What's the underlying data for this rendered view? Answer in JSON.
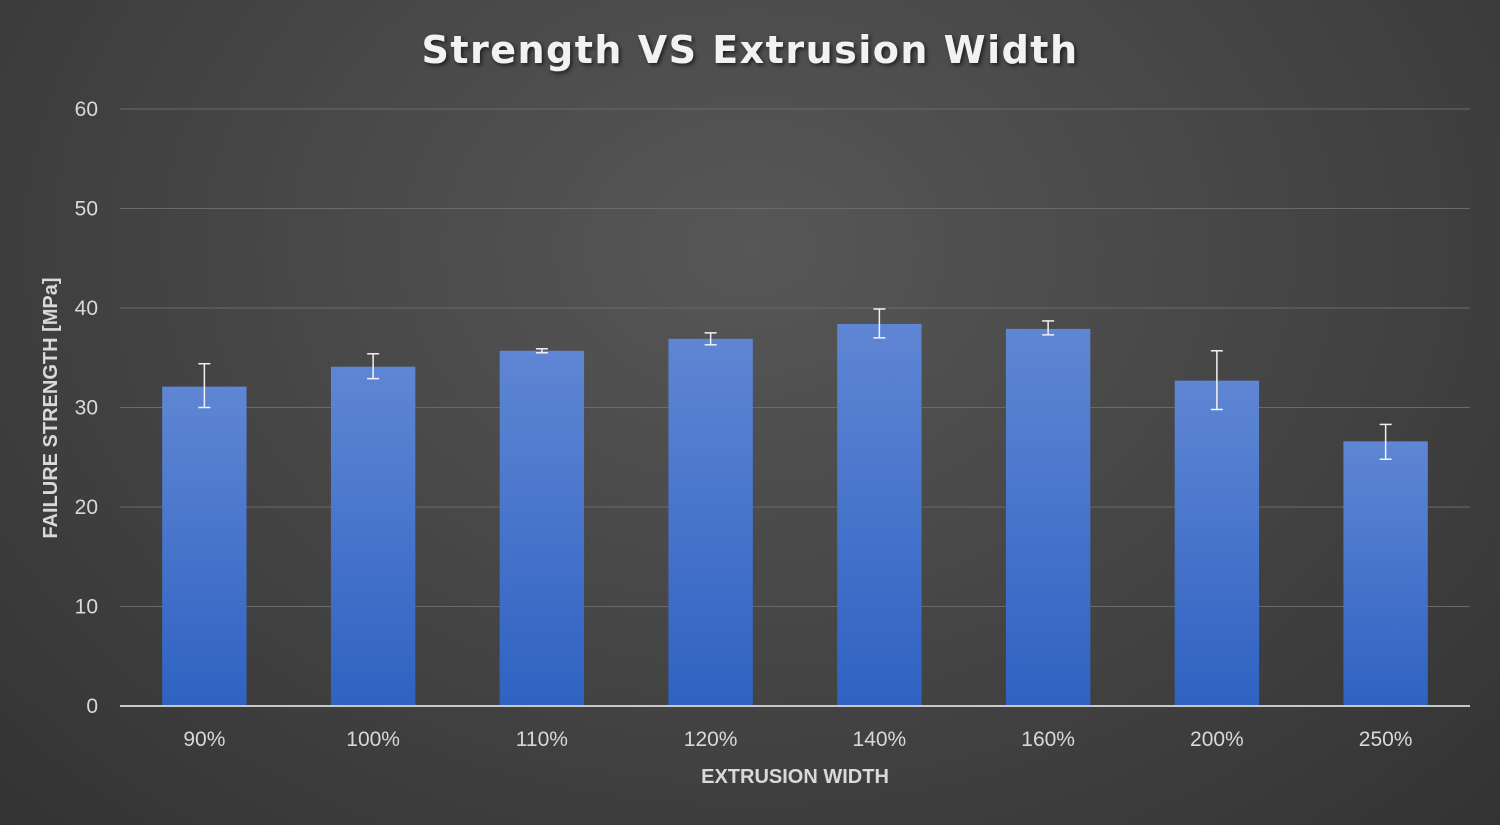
{
  "chart_data": {
    "type": "bar",
    "title": "Strength VS Extrusion Width",
    "xlabel": "EXTRUSION WIDTH",
    "ylabel": "FAILURE STRENGTH [MPa]",
    "ylim": [
      0,
      60
    ],
    "yticks": [
      0,
      10,
      20,
      30,
      40,
      50,
      60
    ],
    "grid": true,
    "categories": [
      "90%",
      "100%",
      "110%",
      "120%",
      "140%",
      "160%",
      "200%",
      "250%"
    ],
    "values": [
      32.1,
      34.1,
      35.7,
      36.9,
      38.4,
      37.9,
      32.7,
      26.6
    ],
    "error_low": [
      30.0,
      32.9,
      35.5,
      36.3,
      37.0,
      37.3,
      29.8,
      24.8
    ],
    "error_high": [
      34.4,
      35.4,
      35.9,
      37.5,
      39.9,
      38.7,
      35.7,
      28.3
    ],
    "colors": {
      "bar_top": "#5f86d4",
      "bar_bottom": "#2f62c2",
      "grid": "#6a6a6a",
      "axis": "#c8c8c8",
      "error": "#f2f2f2"
    }
  }
}
